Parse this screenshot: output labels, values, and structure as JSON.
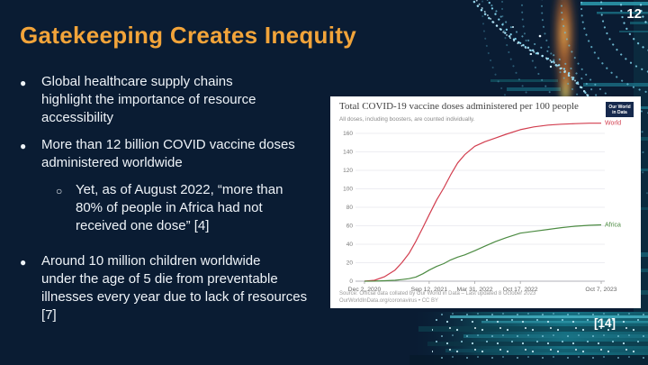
{
  "slide": {
    "page_number": "12",
    "title": "Gatekeeping Creates Inequity",
    "citation": "[14]",
    "bullet_glyphs": {
      "level1": "●",
      "level2": "○"
    },
    "bullets": [
      {
        "level": 1,
        "text": "Global healthcare supply chains\nhighlight the importance of resource\naccessibility"
      },
      {
        "level": 1,
        "text": "More than 12 billion COVID vaccine doses\nadministered worldwide"
      },
      {
        "level": 2,
        "text": "Yet, as of August 2022, “more than\n80% of people in Africa had not\nreceived one dose” [4]"
      },
      {
        "level": 1,
        "text": "Around 10 million children worldwide\nunder the age of 5 die from preventable\nillnesses every year due to lack of resources\n[7]"
      }
    ],
    "colors": {
      "background": "#0a1c33",
      "title_accent": "#f2a43a",
      "body_text": "#eef3f8",
      "teal_accent": "#1b7f93",
      "glow_orange": "#ef7f2d"
    }
  },
  "chart": {
    "logo": {
      "line1": "Our World",
      "line2": "in Data"
    },
    "source": {
      "line1": "Source: Official data collated by Our World in Data – Last updated 8 October 2023",
      "line2": "OurWorldInData.org/coronavirus • CC BY"
    }
  },
  "chart_data": {
    "type": "line",
    "title": "Total COVID-19 vaccine doses administered per 100 people",
    "subtitle": "All doses, including boosters, are counted individually.",
    "xlabel": "",
    "ylabel": "",
    "ylim": [
      0,
      160
    ],
    "yticks": [
      0,
      20,
      40,
      60,
      80,
      100,
      120,
      140,
      160
    ],
    "grid": true,
    "legend_position": "right-end-labels",
    "xticks": [
      "Dec 2, 2020",
      "Sep 12, 2021",
      "Mar 31, 2022",
      "Oct 17, 2022",
      "Oct 7, 2023"
    ],
    "xtick_dates": [
      "2020-12-02",
      "2021-09-12",
      "2022-03-31",
      "2022-10-17",
      "2023-10-07"
    ],
    "x": [
      "2020-12-02",
      "2021-01-15",
      "2021-03-01",
      "2021-04-15",
      "2021-05-15",
      "2021-06-15",
      "2021-07-15",
      "2021-08-15",
      "2021-09-12",
      "2021-10-15",
      "2021-11-15",
      "2021-12-15",
      "2022-01-15",
      "2022-02-15",
      "2022-03-31",
      "2022-05-15",
      "2022-07-01",
      "2022-08-15",
      "2022-10-17",
      "2022-12-15",
      "2023-02-15",
      "2023-04-15",
      "2023-06-15",
      "2023-08-15",
      "2023-10-07"
    ],
    "series": [
      {
        "name": "World",
        "color": "#d23e4f",
        "values": [
          0,
          1,
          5,
          12,
          20,
          30,
          43,
          58,
          72,
          88,
          101,
          115,
          128,
          137,
          146,
          151,
          155,
          159,
          164,
          167,
          169,
          170,
          170.5,
          171,
          171
        ]
      },
      {
        "name": "Africa",
        "color": "#4c8b42",
        "values": [
          0,
          0.1,
          0.5,
          1,
          1.8,
          2.7,
          4.5,
          8,
          12,
          16,
          19,
          23,
          26,
          28.5,
          33,
          38,
          43,
          47,
          52,
          54,
          56,
          58,
          59.5,
          60.5,
          61
        ]
      }
    ]
  }
}
